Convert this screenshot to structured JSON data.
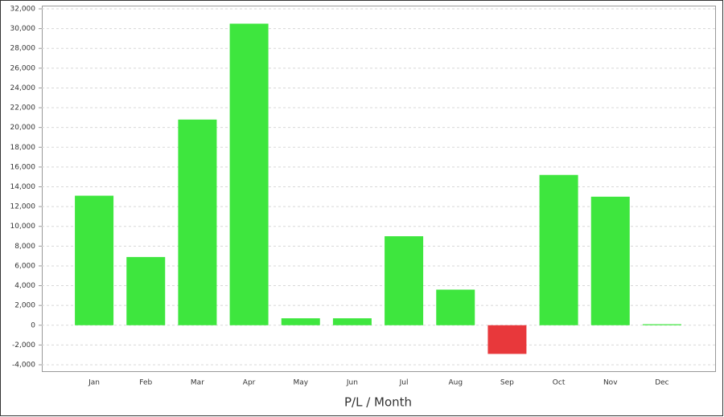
{
  "chart_data": {
    "type": "bar",
    "x_label": "P/L / Month",
    "categories": [
      "Jan",
      "Feb",
      "Mar",
      "Apr",
      "May",
      "Jun",
      "Jul",
      "Aug",
      "Sep",
      "Oct",
      "Nov",
      "Dec"
    ],
    "values": [
      13100,
      6900,
      20800,
      30500,
      700,
      700,
      9000,
      3600,
      -2900,
      15200,
      13000,
      100
    ],
    "colors": [
      "#3ee63e",
      "#3ee63e",
      "#3ee63e",
      "#3ee63e",
      "#3ee63e",
      "#3ee63e",
      "#3ee63e",
      "#3ee63e",
      "#e8383b",
      "#3ee63e",
      "#3ee63e",
      "#3ee63e"
    ],
    "ylim": [
      -4000,
      32000
    ],
    "yticks": [
      {
        "value": -4000,
        "label": "-4,000"
      },
      {
        "value": -2000,
        "label": "-2,000"
      },
      0,
      {
        "value": 2000,
        "label": "2,000"
      },
      {
        "value": 4000,
        "label": "4,000"
      },
      {
        "value": 6000,
        "label": "6,000"
      },
      {
        "value": 8000,
        "label": "8,000"
      },
      {
        "value": 10000,
        "label": "10,000"
      },
      {
        "value": 12000,
        "label": "12,000"
      },
      {
        "value": 14000,
        "label": "14,000"
      },
      {
        "value": 16000,
        "label": "16,000"
      },
      {
        "value": 18000,
        "label": "18,000"
      },
      {
        "value": 20000,
        "label": "20,000"
      },
      {
        "value": 22000,
        "label": "22,000"
      },
      {
        "value": 24000,
        "label": "24,000"
      },
      {
        "value": 26000,
        "label": "26,000"
      },
      {
        "value": 28000,
        "label": "28,000"
      },
      {
        "value": 30000,
        "label": "30,000"
      },
      {
        "value": 32000,
        "label": "32,000"
      }
    ],
    "grid": true
  }
}
